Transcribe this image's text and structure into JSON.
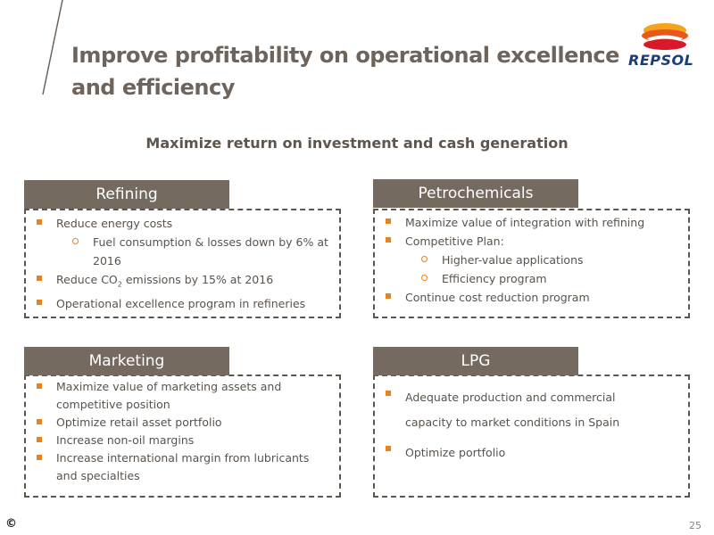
{
  "title": "Improve profitability on operational excellence and efficiency",
  "brand": {
    "name": "REPSOL"
  },
  "subtitle": "Maximize return on investment and cash generation",
  "panels": {
    "refining": {
      "heading": "Refining",
      "items": [
        {
          "text": "Reduce energy costs",
          "level": 1
        },
        {
          "text": "Fuel consumption & losses down by 6% at 2016",
          "level": 2
        },
        {
          "text": "Reduce CO2 emissions by 15% at 2016",
          "level": 1
        },
        {
          "text": "Operational excellence program  in refineries",
          "level": 1
        }
      ]
    },
    "petrochemicals": {
      "heading": "Petrochemicals",
      "items": [
        {
          "text": "Maximize value of integration with refining",
          "level": 1
        },
        {
          "text": "Competitive Plan:",
          "level": 1
        },
        {
          "text": "Higher-value applications",
          "level": 2
        },
        {
          "text": "Efficiency program",
          "level": 2
        },
        {
          "text": "Continue cost reduction program",
          "level": 1
        }
      ]
    },
    "marketing": {
      "heading": "Marketing",
      "items": [
        {
          "text": "Maximize value of marketing assets and competitive position",
          "level": 1
        },
        {
          "text": "Optimize retail asset portfolio",
          "level": 1
        },
        {
          "text": "Increase non-oil margins",
          "level": 1
        },
        {
          "text": "Increase international margin from lubricants and specialties",
          "level": 1
        }
      ]
    },
    "lpg": {
      "heading": "LPG",
      "items": [
        {
          "text": "Adequate production and commercial capacity to market conditions in Spain",
          "level": 1
        },
        {
          "text": "Optimize portfolio",
          "level": 1
        }
      ]
    }
  },
  "footer": {
    "copyright_symbol": "©",
    "page_number": "25"
  },
  "colors": {
    "header_bg": "#756a60",
    "bullet": "#e8821e",
    "title": "#6e645c",
    "border": "#5e554d"
  }
}
